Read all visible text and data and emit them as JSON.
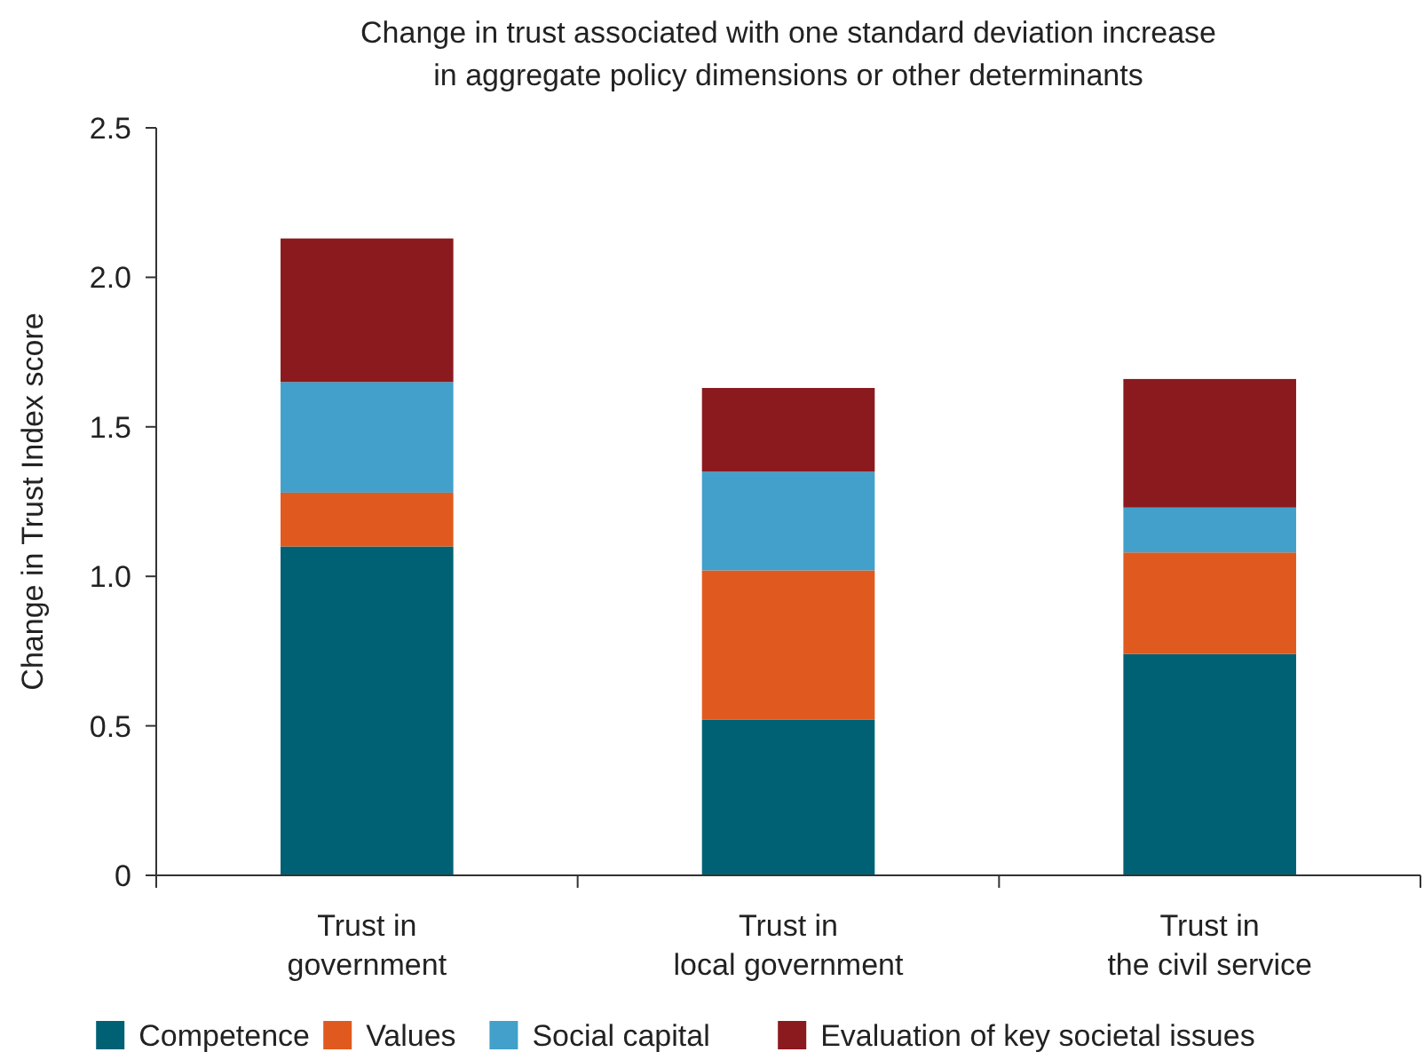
{
  "chart_data": {
    "type": "bar",
    "stacked": true,
    "title": "Change in trust associated with one standard deviation increase\nin aggregate policy dimensions or other determinants",
    "ylabel": "Change in Trust Index score",
    "categories": [
      "Trust in\ngovernment",
      "Trust in\nlocal government",
      "Trust in\nthe civil service"
    ],
    "series": [
      {
        "name": "Competence",
        "color": "#006175",
        "values": [
          1.1,
          0.52,
          0.74
        ]
      },
      {
        "name": "Values",
        "color": "#e05a1f",
        "values": [
          0.18,
          0.5,
          0.34
        ]
      },
      {
        "name": "Social capital",
        "color": "#42a0cb",
        "values": [
          0.37,
          0.33,
          0.15
        ]
      },
      {
        "name": "Evaluation of key societal issues",
        "color": "#8b1a1f",
        "values": [
          0.48,
          0.28,
          0.43
        ]
      }
    ],
    "ylim": [
      0,
      2.5
    ],
    "yticks": [
      {
        "value": 0,
        "label": "0"
      },
      {
        "value": 0.5,
        "label": "0.5"
      },
      {
        "value": 1,
        "label": "1.0"
      },
      {
        "value": 1.5,
        "label": "1.5"
      },
      {
        "value": 2,
        "label": "2.0"
      },
      {
        "value": 2.5,
        "label": "2.5"
      }
    ],
    "grid": false,
    "legend": "bottom"
  }
}
